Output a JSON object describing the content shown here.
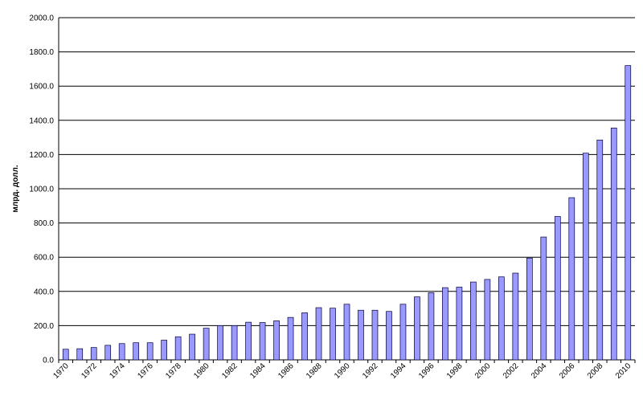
{
  "chart_data": {
    "type": "bar",
    "y_label": "млрд. долл.",
    "categories": [
      "1970",
      null,
      "1972",
      null,
      "1974",
      null,
      "1976",
      null,
      "1978",
      null,
      "1980",
      null,
      "1982",
      null,
      "1984",
      null,
      "1986",
      null,
      "1988",
      null,
      "1990",
      null,
      "1992",
      null,
      "1994",
      null,
      "1996",
      null,
      "1998",
      null,
      "2000",
      null,
      "2002",
      null,
      "2004",
      null,
      "2006",
      null,
      "2008",
      null,
      "2010"
    ],
    "values": [
      62,
      65,
      72,
      85,
      95,
      100,
      100,
      115,
      135,
      150,
      185,
      200,
      200,
      220,
      218,
      228,
      248,
      275,
      305,
      302,
      325,
      290,
      290,
      283,
      325,
      368,
      392,
      422,
      425,
      455,
      470,
      485,
      507,
      595,
      718,
      838,
      948,
      1208,
      1285,
      1355,
      1720
    ],
    "color": "#9999ff",
    "ylim": [
      0,
      2000
    ],
    "yticks": [
      {
        "value": 0,
        "label": "0.0"
      },
      {
        "value": 200,
        "label": "200.0"
      },
      {
        "value": 400,
        "label": "400.0"
      },
      {
        "value": 600,
        "label": "600.0"
      },
      {
        "value": 800,
        "label": "800.0"
      },
      {
        "value": 1000,
        "label": "1000.0"
      },
      {
        "value": 1200,
        "label": "1200.0"
      },
      {
        "value": 1400,
        "label": "1400.0"
      },
      {
        "value": 1600,
        "label": "1600.0"
      },
      {
        "value": 1800,
        "label": "1800.0"
      },
      {
        "value": 2000,
        "label": "2000.0"
      }
    ],
    "grid": true
  }
}
